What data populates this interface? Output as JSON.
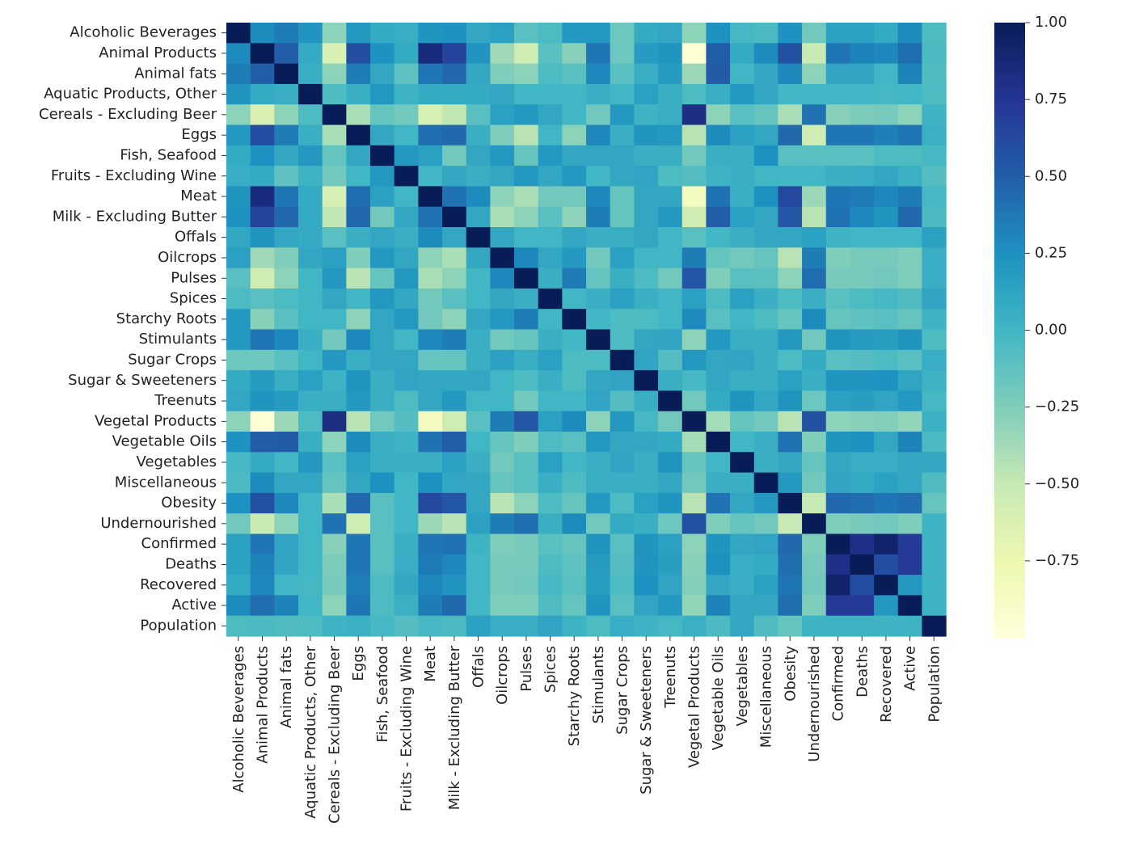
{
  "chart_data": {
    "type": "heatmap",
    "title": "",
    "xlabel": "",
    "ylabel": "",
    "colormap": "YlGnBu",
    "colormap_stops": [
      "#ffffd9",
      "#edf8b1",
      "#c7e9b4",
      "#7fcdbb",
      "#41b6c4",
      "#1d91c0",
      "#225ea8",
      "#253494",
      "#081d58"
    ],
    "vmin": -1.0,
    "vmax": 1.0,
    "colorbar_ticks": [
      {
        "value": 1.0,
        "label": "1.00"
      },
      {
        "value": 0.75,
        "label": "0.75"
      },
      {
        "value": 0.5,
        "label": "0.50"
      },
      {
        "value": 0.25,
        "label": "0.25"
      },
      {
        "value": 0.0,
        "label": "0.00"
      },
      {
        "value": -0.25,
        "label": "−0.25"
      },
      {
        "value": -0.5,
        "label": "−0.50"
      },
      {
        "value": -0.75,
        "label": "−0.75"
      }
    ],
    "labels": [
      "Alcoholic Beverages",
      "Animal Products",
      "Animal fats",
      "Aquatic Products, Other",
      "Cereals - Excluding Beer",
      "Eggs",
      "Fish, Seafood",
      "Fruits - Excluding Wine",
      "Meat",
      "Milk - Excluding Butter",
      "Offals",
      "Oilcrops",
      "Pulses",
      "Spices",
      "Starchy Roots",
      "Stimulants",
      "Sugar Crops",
      "Sugar & Sweeteners",
      "Treenuts",
      "Vegetal Products",
      "Vegetable Oils",
      "Vegetables",
      "Miscellaneous",
      "Obesity",
      "Undernourished",
      "Confirmed",
      "Deaths",
      "Recovered",
      "Active",
      "Population"
    ],
    "matrix": [
      [
        1,
        0.28,
        0.35,
        0.22,
        -0.3,
        0.2,
        0.08,
        0.06,
        0.22,
        0.24,
        0.1,
        0.15,
        -0.1,
        -0.05,
        0.2,
        0.2,
        -0.18,
        0.08,
        0.1,
        -0.3,
        0.24,
        -0.02,
        -0.04,
        0.24,
        -0.2,
        0.14,
        0.14,
        0.08,
        0.28,
        -0.05
      ],
      [
        0.28,
        1,
        0.5,
        0.08,
        -0.62,
        0.6,
        0.24,
        0.08,
        0.85,
        0.66,
        0.22,
        -0.36,
        -0.55,
        -0.1,
        -0.28,
        0.38,
        -0.18,
        0.18,
        0.22,
        -0.97,
        0.5,
        0.08,
        0.28,
        0.58,
        -0.52,
        0.38,
        0.32,
        0.3,
        0.42,
        -0.04
      ],
      [
        0.35,
        0.5,
        1,
        0.05,
        -0.3,
        0.35,
        0.1,
        -0.12,
        0.38,
        0.45,
        0.1,
        -0.25,
        -0.3,
        -0.05,
        -0.1,
        0.3,
        -0.1,
        0.05,
        0.18,
        -0.35,
        0.52,
        0.0,
        0.1,
        0.3,
        -0.3,
        0.12,
        0.12,
        0.0,
        0.32,
        -0.06
      ],
      [
        0.22,
        0.08,
        0.05,
        1,
        -0.05,
        0.05,
        0.2,
        0.02,
        0.08,
        0.08,
        0.08,
        0.1,
        0.0,
        0.0,
        0.0,
        0.05,
        0.0,
        0.15,
        0.05,
        -0.05,
        0.05,
        0.2,
        0.1,
        0.0,
        0.0,
        0.0,
        0.0,
        -0.02,
        0.0,
        -0.05
      ],
      [
        -0.3,
        -0.62,
        -0.3,
        -0.05,
        1,
        -0.4,
        -0.15,
        -0.2,
        -0.6,
        -0.48,
        -0.1,
        0.15,
        0.2,
        0.1,
        0.0,
        -0.2,
        0.2,
        0.02,
        0.05,
        0.82,
        -0.3,
        -0.1,
        -0.15,
        -0.4,
        0.4,
        -0.28,
        -0.24,
        -0.22,
        -0.3,
        0.02
      ],
      [
        0.2,
        0.6,
        0.35,
        0.05,
        -0.4,
        1,
        0.1,
        0.0,
        0.42,
        0.45,
        0.05,
        -0.25,
        -0.45,
        0.0,
        -0.3,
        0.3,
        0.05,
        0.22,
        0.2,
        -0.45,
        0.28,
        0.15,
        0.1,
        0.45,
        -0.55,
        0.38,
        0.38,
        0.34,
        0.38,
        0.04
      ],
      [
        0.08,
        0.24,
        0.1,
        0.2,
        -0.15,
        0.1,
        1,
        0.2,
        0.15,
        -0.2,
        0.1,
        0.2,
        -0.15,
        0.2,
        0.1,
        0.1,
        0.1,
        0.05,
        0.05,
        -0.2,
        0.05,
        0.05,
        0.25,
        -0.1,
        -0.1,
        -0.1,
        -0.1,
        -0.05,
        -0.05,
        -0.02
      ],
      [
        0.06,
        0.08,
        -0.12,
        0.02,
        -0.2,
        0.0,
        0.2,
        1,
        0.0,
        0.1,
        0.05,
        0.1,
        0.2,
        0.1,
        0.2,
        0.0,
        0.1,
        0.12,
        -0.05,
        -0.08,
        0.02,
        0.05,
        0.0,
        0.0,
        0.0,
        0.05,
        0.06,
        0.1,
        0.04,
        -0.08
      ],
      [
        0.22,
        0.85,
        0.38,
        0.08,
        -0.6,
        0.42,
        0.15,
        0.0,
        1,
        0.4,
        0.28,
        -0.3,
        -0.4,
        -0.2,
        -0.2,
        0.3,
        -0.15,
        0.1,
        0.1,
        -0.85,
        0.4,
        0.05,
        0.25,
        0.62,
        -0.35,
        0.38,
        0.36,
        0.3,
        0.35,
        -0.02
      ],
      [
        0.24,
        0.66,
        0.45,
        0.08,
        -0.48,
        0.45,
        -0.2,
        0.1,
        0.4,
        1,
        0.1,
        -0.4,
        -0.3,
        -0.1,
        -0.3,
        0.35,
        -0.15,
        0.1,
        0.2,
        -0.55,
        0.5,
        0.15,
        0.1,
        0.55,
        -0.45,
        0.4,
        0.3,
        0.22,
        0.45,
        -0.04
      ],
      [
        0.1,
        0.22,
        0.1,
        0.08,
        -0.1,
        0.05,
        0.1,
        0.05,
        0.28,
        0.1,
        1,
        0.1,
        0.0,
        0.0,
        0.1,
        0.05,
        0.05,
        0.1,
        0.0,
        -0.1,
        0.0,
        0.05,
        0.1,
        0.1,
        0.14,
        0.02,
        0.0,
        0.0,
        0.0,
        0.14
      ],
      [
        0.15,
        -0.36,
        -0.25,
        0.1,
        0.15,
        -0.25,
        0.2,
        0.1,
        -0.3,
        -0.4,
        0.1,
        1,
        0.3,
        0.1,
        0.2,
        -0.2,
        0.15,
        0.0,
        0.0,
        0.35,
        -0.15,
        -0.2,
        -0.15,
        -0.45,
        0.35,
        -0.25,
        -0.22,
        -0.22,
        -0.25,
        0.06
      ],
      [
        -0.1,
        -0.55,
        -0.3,
        0.0,
        0.2,
        -0.45,
        -0.15,
        0.2,
        -0.4,
        -0.3,
        0.0,
        0.3,
        1,
        0.05,
        0.35,
        -0.15,
        0.05,
        -0.05,
        -0.2,
        0.55,
        -0.25,
        -0.1,
        -0.1,
        -0.3,
        0.42,
        -0.22,
        -0.22,
        -0.2,
        -0.25,
        0.06
      ],
      [
        -0.05,
        -0.1,
        -0.05,
        0.0,
        0.1,
        0.0,
        0.2,
        0.1,
        -0.2,
        -0.1,
        0.0,
        0.1,
        0.05,
        1,
        0.0,
        0.05,
        0.15,
        0.05,
        0.0,
        0.15,
        -0.05,
        0.15,
        0.05,
        -0.05,
        0.05,
        -0.1,
        -0.05,
        -0.02,
        -0.06,
        0.12
      ],
      [
        0.2,
        -0.28,
        -0.1,
        0.0,
        0.0,
        -0.3,
        0.1,
        0.2,
        -0.2,
        -0.3,
        0.1,
        0.2,
        0.35,
        0.0,
        1,
        0.0,
        -0.05,
        -0.05,
        0.0,
        0.28,
        -0.1,
        0.0,
        -0.05,
        -0.15,
        0.28,
        -0.15,
        -0.12,
        -0.1,
        -0.15,
        0.02
      ],
      [
        0.2,
        0.38,
        0.3,
        0.05,
        -0.2,
        0.3,
        0.1,
        0.0,
        0.3,
        0.35,
        0.05,
        -0.2,
        -0.15,
        0.05,
        0.0,
        1,
        -0.05,
        0.1,
        0.12,
        -0.3,
        0.2,
        0.05,
        0.05,
        0.2,
        -0.2,
        0.22,
        0.18,
        0.16,
        0.22,
        -0.05
      ],
      [
        -0.18,
        -0.18,
        -0.1,
        0.0,
        0.2,
        0.05,
        0.1,
        0.1,
        -0.15,
        -0.15,
        0.05,
        0.15,
        0.05,
        0.15,
        -0.05,
        -0.05,
        1,
        0.12,
        -0.08,
        0.2,
        0.1,
        0.12,
        0.05,
        -0.05,
        0.08,
        -0.1,
        -0.08,
        -0.05,
        -0.1,
        0.06
      ],
      [
        0.08,
        0.18,
        0.05,
        0.15,
        0.02,
        0.22,
        0.05,
        0.12,
        0.1,
        0.1,
        0.1,
        0.0,
        -0.05,
        0.05,
        -0.05,
        0.1,
        0.12,
        1,
        0.05,
        -0.02,
        0.1,
        0.05,
        0.05,
        0.15,
        0.05,
        0.22,
        0.22,
        0.24,
        0.12,
        0.02
      ],
      [
        0.1,
        0.22,
        0.18,
        0.05,
        0.05,
        0.2,
        0.05,
        -0.05,
        0.1,
        0.2,
        0.0,
        0.0,
        -0.2,
        0.0,
        0.0,
        0.12,
        -0.08,
        0.05,
        1,
        -0.2,
        0.08,
        0.22,
        0.1,
        0.22,
        -0.18,
        0.15,
        0.16,
        0.12,
        0.2,
        -0.02
      ],
      [
        -0.3,
        -0.97,
        -0.35,
        -0.05,
        0.82,
        -0.45,
        -0.2,
        -0.08,
        -0.85,
        -0.55,
        -0.1,
        0.35,
        0.55,
        0.15,
        0.28,
        -0.3,
        0.2,
        -0.02,
        -0.2,
        1,
        -0.38,
        -0.15,
        -0.2,
        -0.45,
        0.58,
        -0.3,
        -0.28,
        -0.26,
        -0.32,
        0.04
      ],
      [
        0.24,
        0.5,
        0.52,
        0.05,
        -0.3,
        0.28,
        0.05,
        0.02,
        0.4,
        0.5,
        0.0,
        -0.15,
        -0.25,
        -0.05,
        -0.1,
        0.2,
        0.1,
        0.1,
        0.08,
        -0.38,
        1,
        0.0,
        0.05,
        0.4,
        -0.25,
        0.22,
        0.25,
        0.1,
        0.32,
        -0.04
      ],
      [
        -0.02,
        0.08,
        0.0,
        0.2,
        -0.1,
        0.15,
        0.05,
        0.05,
        0.05,
        0.15,
        0.05,
        -0.2,
        -0.1,
        0.15,
        0.0,
        0.05,
        0.12,
        0.05,
        0.22,
        -0.15,
        0.0,
        1,
        0.05,
        0.1,
        -0.15,
        0.1,
        0.06,
        0.06,
        0.1,
        0.1
      ],
      [
        -0.04,
        0.28,
        0.1,
        0.1,
        -0.15,
        0.1,
        0.25,
        0.0,
        0.25,
        0.1,
        0.1,
        -0.15,
        -0.1,
        0.05,
        -0.05,
        0.05,
        0.05,
        0.05,
        0.1,
        -0.2,
        0.05,
        0.05,
        1,
        0.2,
        -0.2,
        0.12,
        0.08,
        0.14,
        0.1,
        -0.06
      ],
      [
        0.24,
        0.58,
        0.3,
        0.0,
        -0.4,
        0.45,
        -0.1,
        0.0,
        0.62,
        0.55,
        0.1,
        -0.45,
        -0.3,
        -0.05,
        -0.15,
        0.2,
        -0.05,
        0.15,
        0.22,
        -0.45,
        0.4,
        0.1,
        0.2,
        1,
        -0.5,
        0.45,
        0.42,
        0.38,
        0.42,
        -0.15
      ],
      [
        -0.2,
        -0.52,
        -0.3,
        0.0,
        0.4,
        -0.55,
        -0.1,
        0.0,
        -0.35,
        -0.45,
        0.14,
        0.35,
        0.42,
        0.05,
        0.28,
        -0.2,
        0.08,
        0.05,
        -0.18,
        0.58,
        -0.25,
        -0.15,
        -0.2,
        -0.5,
        1,
        -0.25,
        -0.22,
        -0.2,
        -0.25,
        0.02
      ],
      [
        0.14,
        0.38,
        0.12,
        0.0,
        -0.28,
        0.38,
        -0.1,
        0.05,
        0.38,
        0.4,
        0.02,
        -0.25,
        -0.22,
        -0.1,
        -0.15,
        0.22,
        -0.1,
        0.22,
        0.15,
        -0.3,
        0.22,
        0.1,
        0.12,
        0.45,
        -0.25,
        1,
        0.8,
        0.92,
        0.72,
        0.02
      ],
      [
        0.14,
        0.32,
        0.12,
        0.0,
        -0.24,
        0.38,
        -0.1,
        0.06,
        0.36,
        0.3,
        0.0,
        -0.22,
        -0.22,
        -0.05,
        -0.12,
        0.18,
        -0.08,
        0.22,
        0.16,
        -0.28,
        0.25,
        0.06,
        0.08,
        0.42,
        -0.22,
        0.8,
        1,
        0.6,
        0.72,
        0.02
      ],
      [
        0.08,
        0.3,
        0.0,
        -0.02,
        -0.22,
        0.34,
        -0.05,
        0.1,
        0.3,
        0.22,
        0.0,
        -0.22,
        -0.2,
        -0.02,
        -0.1,
        0.16,
        -0.05,
        0.24,
        0.12,
        -0.26,
        0.1,
        0.06,
        0.14,
        0.38,
        -0.2,
        0.92,
        0.6,
        1,
        0.2,
        0.02
      ],
      [
        0.28,
        0.42,
        0.32,
        0.0,
        -0.3,
        0.38,
        -0.05,
        0.04,
        0.35,
        0.45,
        0.0,
        -0.25,
        -0.25,
        -0.06,
        -0.15,
        0.22,
        -0.1,
        0.12,
        0.2,
        -0.32,
        0.32,
        0.1,
        0.1,
        0.42,
        -0.25,
        0.72,
        0.72,
        0.2,
        1,
        0.02
      ],
      [
        -0.05,
        -0.04,
        -0.06,
        -0.05,
        0.02,
        0.04,
        -0.02,
        -0.08,
        -0.02,
        -0.04,
        0.14,
        0.06,
        0.06,
        0.12,
        0.02,
        -0.05,
        0.06,
        0.02,
        -0.02,
        0.04,
        -0.04,
        0.1,
        -0.06,
        -0.15,
        0.02,
        0.02,
        0.02,
        0.02,
        0.02,
        1
      ]
    ]
  }
}
